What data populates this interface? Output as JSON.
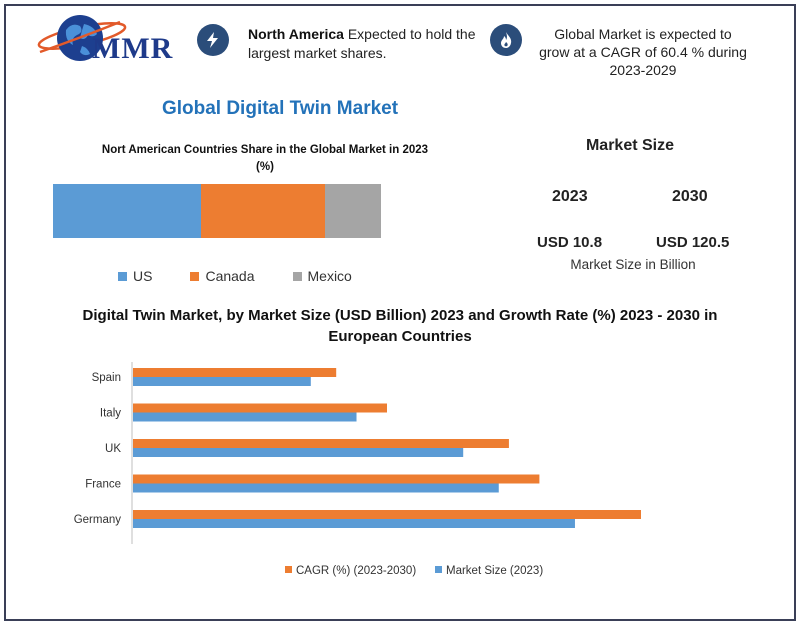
{
  "header": {
    "logo_text": "MMR",
    "highlight_1_bold": "North America",
    "highlight_1_rest": "Expected to hold the largest market shares.",
    "highlight_2": "Global Market is expected to grow at a CAGR of 60.4 % during 2023-2029"
  },
  "main_title": "Global Digital Twin Market",
  "share_chart": {
    "title": "Nort American Countries Share in the Global Market in 2023  (%)",
    "segments": [
      {
        "name": "US",
        "value": 45,
        "color": "#5b9bd5"
      },
      {
        "name": "Canada",
        "value": 38,
        "color": "#ed7d31"
      },
      {
        "name": "Mexico",
        "value": 17,
        "color": "#a5a5a5"
      }
    ]
  },
  "market_size": {
    "title": "Market Size",
    "year_1": "2023",
    "year_2": "2030",
    "value_1": "USD 10.8",
    "value_2": "USD 120.5",
    "note": "Market Size in Billion"
  },
  "chart_data": {
    "type": "bar",
    "orientation": "horizontal",
    "title": "Digital Twin Market, by Market Size (USD Billion) 2023 and Growth Rate (%) 2023 - 2030 in European Countries",
    "categories": [
      "Spain",
      "Italy",
      "UK",
      "France",
      "Germany"
    ],
    "series": [
      {
        "name": "CAGR (%) (2023-2030)",
        "color": "#ed7d31",
        "values": [
          40,
          50,
          74,
          80,
          100
        ]
      },
      {
        "name": "Market Size (2023)",
        "color": "#5b9bd5",
        "values": [
          35,
          44,
          65,
          72,
          87
        ]
      }
    ],
    "xlim": [
      0,
      100
    ],
    "grid": false,
    "legend_position": "bottom"
  },
  "colors": {
    "title_blue": "#2372b9",
    "icon_navy": "#2b4d7a",
    "frame": "#3a3f57"
  }
}
